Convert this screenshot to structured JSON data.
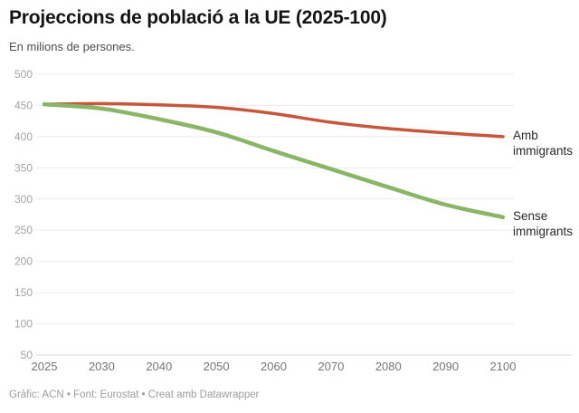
{
  "header": {
    "title": "Projeccions de població a la UE (2025-100)",
    "subtitle": "En milions de persones."
  },
  "footer": {
    "credit": "Gràfic: ACN • Font: Eurostat • Creat amb Datawrapper"
  },
  "chart_data": {
    "type": "line",
    "title": "Projeccions de població a la UE (2025-100)",
    "subtitle": "En milions de persones.",
    "xlabel": "",
    "ylabel": "En milions de persones",
    "x": [
      2025,
      2030,
      2040,
      2050,
      2060,
      2070,
      2080,
      2090,
      2100
    ],
    "x_spacing": "even",
    "ylim": [
      50,
      500
    ],
    "y_ticks": [
      500,
      450,
      400,
      350,
      300,
      250,
      200,
      150,
      100,
      50
    ],
    "grid": "horizontal",
    "legend_position": "right-of-line-ends",
    "series": [
      {
        "name": "Amb immigrants",
        "label_lines": [
          "Amb",
          "immigrants"
        ],
        "color": "#c6563c",
        "stroke_width": 3.5,
        "values": [
          452,
          453,
          451,
          447,
          437,
          423,
          413,
          406,
          400
        ]
      },
      {
        "name": "Sense immigrants",
        "label_lines": [
          "Sense",
          "immigrants"
        ],
        "color": "#8ab567",
        "stroke_width": 4.5,
        "values": [
          452,
          445,
          428,
          407,
          377,
          348,
          319,
          291,
          271
        ]
      }
    ],
    "colors": {
      "gridline": "#ececec",
      "baseline": "#d9d9d9",
      "x_tick_label": "#767676",
      "y_tick_label": "#a3a3a3"
    }
  }
}
